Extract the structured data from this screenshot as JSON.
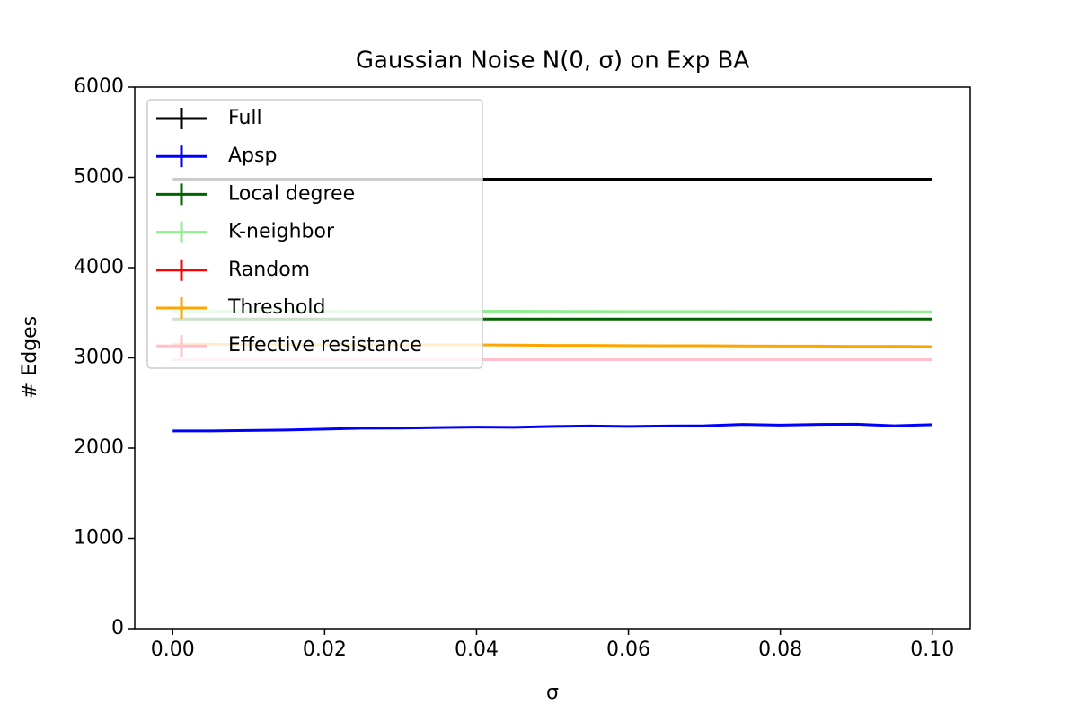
{
  "chart_data": {
    "type": "line",
    "title": "Gaussian Noise N(0, σ) on Exp BA",
    "xlabel": "σ",
    "ylabel": "# Edges",
    "x": [
      0,
      0.005,
      0.01,
      0.015,
      0.02,
      0.025,
      0.03,
      0.035,
      0.04,
      0.045,
      0.05,
      0.055,
      0.06,
      0.065,
      0.07,
      0.075,
      0.08,
      0.085,
      0.09,
      0.095,
      0.1
    ],
    "series": [
      {
        "name": "Full",
        "color": "#000000",
        "values": [
          4980,
          4980,
          4980,
          4980,
          4980,
          4980,
          4980,
          4980,
          4980,
          4980,
          4980,
          4980,
          4980,
          4980,
          4980,
          4980,
          4980,
          4980,
          4980,
          4980,
          4980
        ]
      },
      {
        "name": "Apsp",
        "color": "#0000ff",
        "values": [
          2190,
          2190,
          2195,
          2200,
          2210,
          2220,
          2222,
          2228,
          2232,
          2230,
          2240,
          2245,
          2240,
          2245,
          2248,
          2262,
          2255,
          2262,
          2265,
          2248,
          2260
        ]
      },
      {
        "name": "Local degree",
        "color": "#006400",
        "values": [
          3430,
          3430,
          3430,
          3430,
          3430,
          3430,
          3430,
          3430,
          3430,
          3430,
          3430,
          3430,
          3430,
          3430,
          3430,
          3430,
          3430,
          3430,
          3430,
          3430,
          3430
        ]
      },
      {
        "name": "K-neighbor",
        "color": "#90ee90",
        "values": [
          3520,
          3520,
          3520,
          3519,
          3519,
          3518,
          3518,
          3518,
          3517,
          3517,
          3516,
          3515,
          3514,
          3514,
          3514,
          3513,
          3513,
          3512,
          3512,
          3511,
          3510
        ]
      },
      {
        "name": "Random",
        "color": "#ff0000",
        "values": [
          2980,
          2980,
          2980,
          2980,
          2980,
          2980,
          2980,
          2980,
          2980,
          2980,
          2980,
          2980,
          2980,
          2980,
          2980,
          2980,
          2980,
          2980,
          2980,
          2980,
          2980
        ]
      },
      {
        "name": "Threshold",
        "color": "#ffa500",
        "values": [
          3150,
          3150,
          3148,
          3147,
          3146,
          3145,
          3145,
          3144,
          3144,
          3142,
          3138,
          3138,
          3135,
          3134,
          3134,
          3132,
          3130,
          3130,
          3127,
          3128,
          3125
        ]
      },
      {
        "name": "Effective resistance",
        "color": "#ffc0cb",
        "values": [
          2980,
          2980,
          2980,
          2980,
          2980,
          2980,
          2980,
          2980,
          2980,
          2980,
          2980,
          2980,
          2980,
          2980,
          2980,
          2980,
          2980,
          2980,
          2980,
          2980,
          2980
        ]
      }
    ],
    "xlim": [
      -0.005,
      0.105
    ],
    "xticks": [
      {
        "value": 0,
        "label": "0.00"
      },
      {
        "value": 0.02,
        "label": "0.02"
      },
      {
        "value": 0.04,
        "label": "0.04"
      },
      {
        "value": 0.06,
        "label": "0.06"
      },
      {
        "value": 0.08,
        "label": "0.08"
      },
      {
        "value": 0.1,
        "label": "0.10"
      }
    ],
    "ylim": [
      0,
      6000
    ],
    "yticks": [
      0,
      1000,
      2000,
      3000,
      4000,
      5000,
      6000
    ],
    "legend": "upper left",
    "grid": false
  }
}
